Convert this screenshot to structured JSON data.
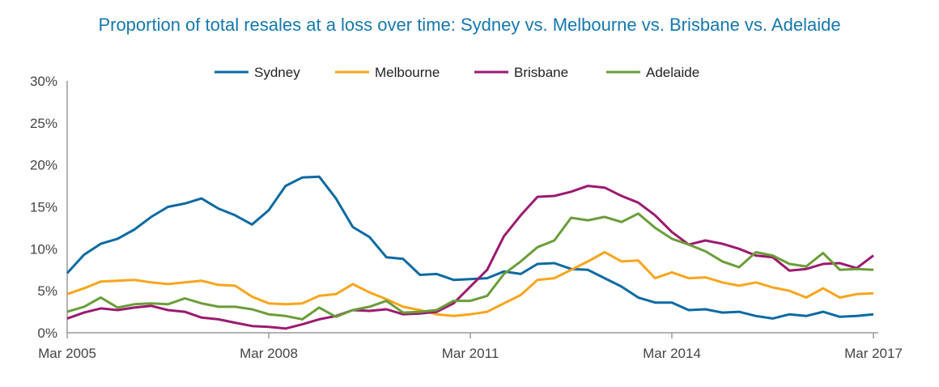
{
  "chart_data": {
    "type": "line",
    "title": "Proportion of total resales at a loss over time: Sydney vs. Melbourne vs. Brisbane vs. Adelaide",
    "x_frequency": "quarterly",
    "x_start": "Mar 2005",
    "x_end": "Mar 2017",
    "x_tick_labels": [
      "Mar 2005",
      "Mar 2008",
      "Mar 2011",
      "Mar 2014",
      "Mar 2017"
    ],
    "y_tick_labels": [
      "0%",
      "5%",
      "10%",
      "15%",
      "20%",
      "25%",
      "30%"
    ],
    "ylim": [
      0,
      30
    ],
    "y_unit": "%",
    "grid": false,
    "legend_position": "top",
    "series": [
      {
        "name": "Sydney",
        "color": "#0b6aa2",
        "values": [
          7.1,
          9.3,
          10.6,
          11.2,
          12.3,
          13.8,
          15.0,
          15.4,
          16.0,
          14.8,
          14.0,
          12.9,
          14.6,
          17.5,
          18.5,
          18.6,
          16.0,
          12.6,
          11.4,
          9.0,
          8.8,
          6.9,
          7.0,
          6.3,
          6.4,
          6.5,
          7.3,
          7.0,
          8.2,
          8.3,
          7.6,
          7.5,
          6.5,
          5.5,
          4.2,
          3.6,
          3.6,
          2.7,
          2.8,
          2.4,
          2.5,
          2.0,
          1.7,
          2.2,
          2.0,
          2.5,
          1.9,
          2.0,
          2.2
        ]
      },
      {
        "name": "Melbourne",
        "color": "#f8a51d",
        "values": [
          4.6,
          5.3,
          6.1,
          6.2,
          6.3,
          6.0,
          5.8,
          6.0,
          6.2,
          5.7,
          5.6,
          4.3,
          3.5,
          3.4,
          3.5,
          4.4,
          4.6,
          5.8,
          4.8,
          4.0,
          3.1,
          2.7,
          2.2,
          2.0,
          2.2,
          2.5,
          3.5,
          4.5,
          6.3,
          6.5,
          7.5,
          8.5,
          9.6,
          8.5,
          8.6,
          6.5,
          7.2,
          6.5,
          6.6,
          6.0,
          5.6,
          6.0,
          5.4,
          5.0,
          4.2,
          5.3,
          4.2,
          4.6,
          4.7
        ]
      },
      {
        "name": "Brisbane",
        "color": "#9b1a6f",
        "values": [
          1.7,
          2.4,
          2.9,
          2.7,
          3.0,
          3.2,
          2.7,
          2.5,
          1.8,
          1.6,
          1.2,
          0.8,
          0.7,
          0.5,
          1.0,
          1.6,
          2.0,
          2.7,
          2.6,
          2.8,
          2.2,
          2.3,
          2.5,
          3.5,
          5.5,
          7.5,
          11.5,
          14.0,
          16.2,
          16.3,
          16.8,
          17.5,
          17.3,
          16.3,
          15.5,
          14.0,
          12.0,
          10.5,
          11.0,
          10.6,
          10.0,
          9.2,
          9.0,
          7.4,
          7.6,
          8.2,
          8.3,
          7.7,
          9.2
        ]
      },
      {
        "name": "Adelaide",
        "color": "#6b9d3a",
        "values": [
          2.5,
          3.1,
          4.2,
          3.0,
          3.4,
          3.5,
          3.4,
          4.1,
          3.5,
          3.1,
          3.1,
          2.8,
          2.2,
          2.0,
          1.6,
          3.0,
          1.9,
          2.7,
          3.1,
          3.8,
          2.4,
          2.5,
          2.7,
          3.8,
          3.8,
          4.4,
          7.0,
          8.5,
          10.2,
          11.0,
          13.7,
          13.4,
          13.8,
          13.2,
          14.2,
          12.5,
          11.2,
          10.5,
          9.7,
          8.5,
          7.8,
          9.6,
          9.2,
          8.2,
          7.9,
          9.5,
          7.5,
          7.6,
          7.5
        ]
      }
    ]
  }
}
